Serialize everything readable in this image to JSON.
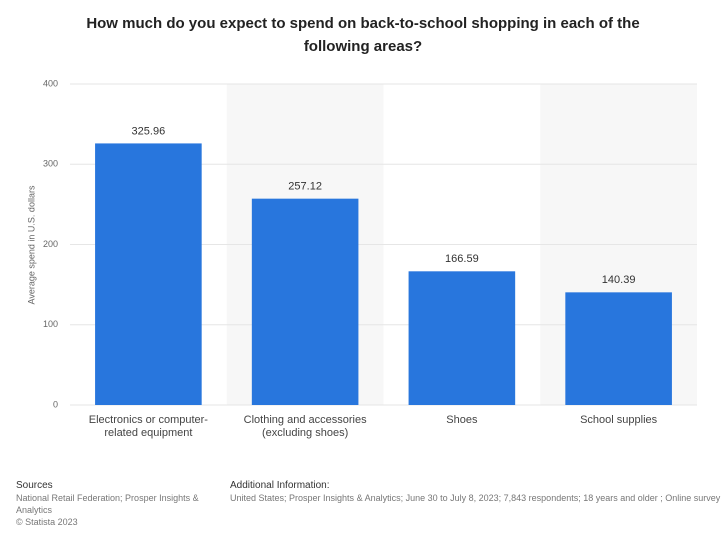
{
  "chart_data": {
    "type": "bar",
    "title": "How much do you expect to spend on back-to-school shopping in each of the following areas?",
    "y_label": "Average spend in U.S. dollars",
    "categories": [
      "Electronics or computer-related equipment",
      "Clothing and accessories (excluding shoes)",
      "Shoes",
      "School supplies"
    ],
    "values": [
      325.96,
      257.12,
      166.59,
      140.39
    ],
    "color": "#2876dd",
    "ylim": [
      0,
      400
    ],
    "yticks": [
      0,
      100,
      200,
      300,
      400
    ],
    "grid": true
  },
  "footer": {
    "sources_heading": "Sources",
    "sources": "National Retail Federation; Prosper Insights & Analytics",
    "copyright": "© Statista 2023",
    "info_heading": "Additional Information:",
    "info": "United States; Prosper Insights & Analytics; June 30 to July 8, 2023; 7,843 respondents; 18 years and older ; Online survey"
  }
}
